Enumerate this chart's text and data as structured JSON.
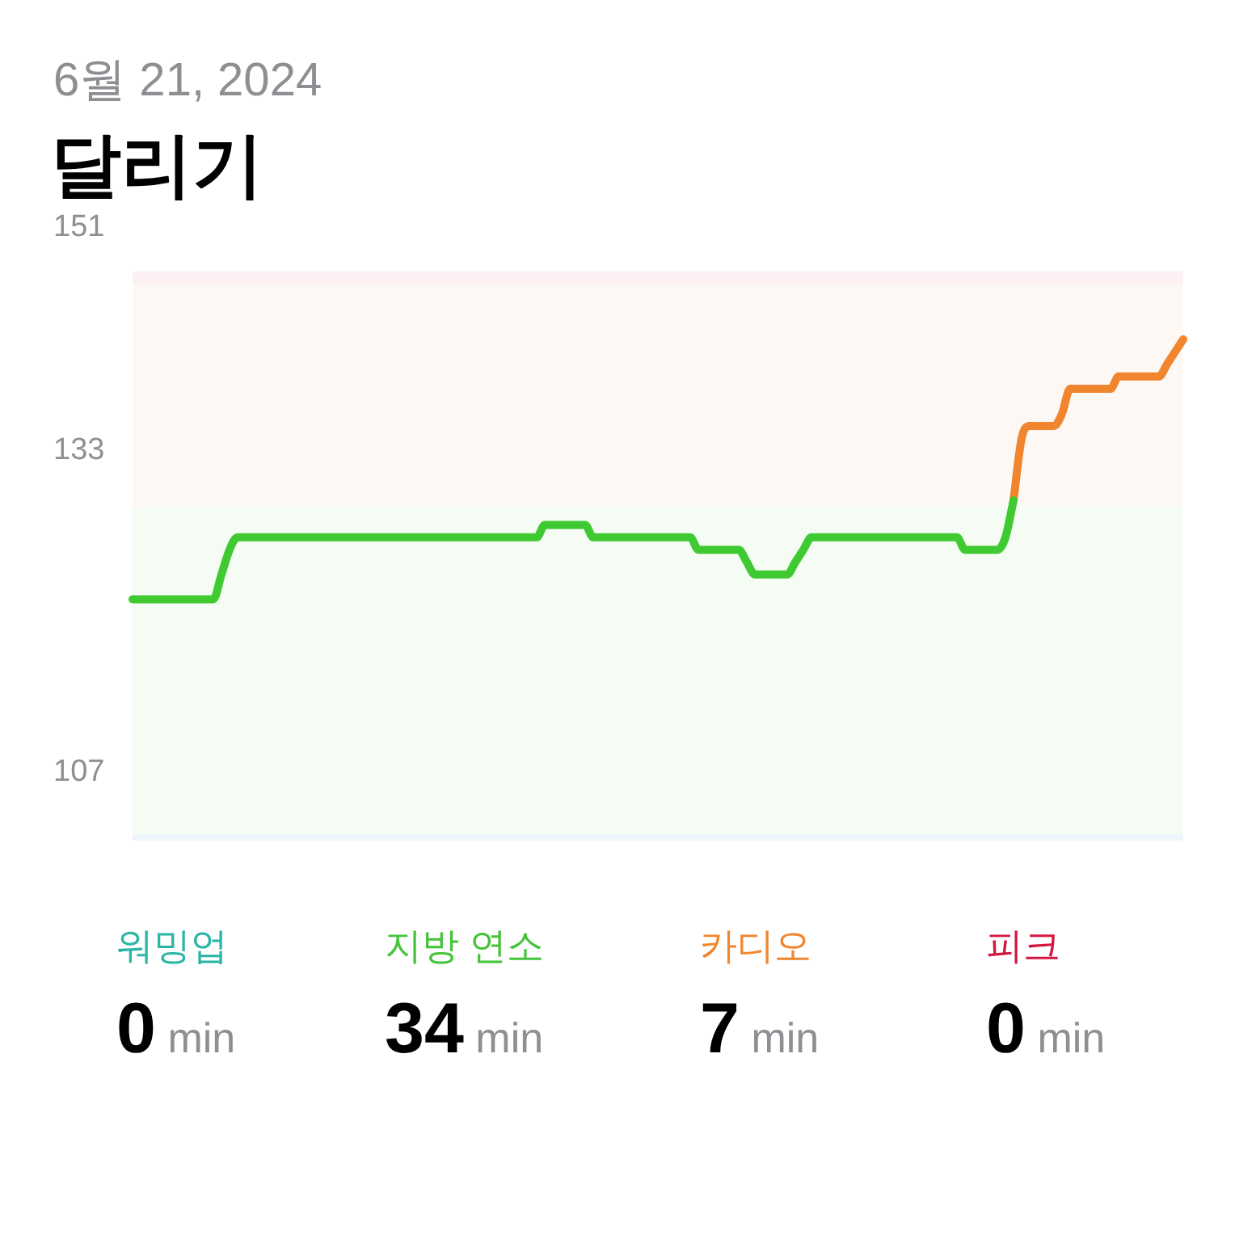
{
  "chart_data": {
    "type": "line",
    "title": "달리기",
    "subtitle": "6월 21, 2024",
    "categories": [
      null,
      null,
      null,
      null,
      null,
      null,
      null,
      null,
      null,
      null,
      null,
      null,
      null,
      null,
      null,
      null,
      null,
      null,
      null,
      null,
      null,
      null,
      null,
      null,
      null,
      null,
      null,
      null,
      null,
      null,
      null,
      null,
      null,
      null,
      null,
      null,
      null,
      null,
      null,
      null,
      null,
      null,
      null,
      null,
      null,
      null,
      null,
      null,
      null,
      null,
      null,
      null,
      null,
      null,
      null,
      null,
      null,
      null,
      null,
      null,
      null,
      null,
      null,
      null,
      null,
      null,
      null,
      null,
      null,
      null,
      null,
      null,
      null,
      null,
      null,
      null,
      null,
      null,
      null,
      null,
      null,
      null,
      null,
      null,
      null,
      null,
      null,
      null,
      null,
      null,
      null,
      null,
      null,
      null,
      null,
      null,
      null,
      null,
      null,
      null,
      null,
      null,
      null,
      null,
      null,
      null,
      null,
      null,
      null,
      null,
      null,
      null,
      null,
      null,
      null,
      null,
      null,
      null,
      null,
      null,
      null,
      null,
      null,
      null,
      null,
      null,
      null,
      null,
      null,
      null,
      null
    ],
    "series": [
      {
        "color": "#3fca32",
        "values": [
          121,
          121,
          121,
          121,
          121,
          121,
          121,
          121,
          121,
          121,
          121,
          123,
          125,
          126,
          126,
          126,
          126,
          126,
          126,
          126,
          126,
          126,
          126,
          126,
          126,
          126,
          126,
          126,
          126,
          126,
          126,
          126,
          126,
          126,
          126,
          126,
          126,
          126,
          126,
          126,
          126,
          126,
          126,
          126,
          126,
          126,
          126,
          126,
          126,
          126,
          126,
          127,
          127,
          127,
          127,
          127,
          127,
          126,
          126,
          126,
          126,
          126,
          126,
          126,
          126,
          126,
          126,
          126,
          126,
          126,
          125,
          125,
          125,
          125,
          125,
          125,
          124,
          123,
          123,
          123,
          123,
          123,
          124,
          125,
          126,
          126,
          126,
          126,
          126,
          126,
          126,
          126,
          126,
          126,
          126,
          126,
          126,
          126,
          126,
          126,
          126,
          126,
          126,
          125,
          125,
          125,
          125,
          125,
          126,
          129,
          null,
          null,
          null,
          null,
          null,
          null,
          null,
          null,
          null,
          null,
          null,
          null,
          null,
          null,
          null,
          null,
          null,
          null,
          null,
          null,
          null
        ]
      },
      {
        "color": "#f0852d",
        "values": [
          null,
          null,
          null,
          null,
          null,
          null,
          null,
          null,
          null,
          null,
          null,
          null,
          null,
          null,
          null,
          null,
          null,
          null,
          null,
          null,
          null,
          null,
          null,
          null,
          null,
          null,
          null,
          null,
          null,
          null,
          null,
          null,
          null,
          null,
          null,
          null,
          null,
          null,
          null,
          null,
          null,
          null,
          null,
          null,
          null,
          null,
          null,
          null,
          null,
          null,
          null,
          null,
          null,
          null,
          null,
          null,
          null,
          null,
          null,
          null,
          null,
          null,
          null,
          null,
          null,
          null,
          null,
          null,
          null,
          null,
          null,
          null,
          null,
          null,
          null,
          null,
          null,
          null,
          null,
          null,
          null,
          null,
          null,
          null,
          null,
          null,
          null,
          null,
          null,
          null,
          null,
          null,
          null,
          null,
          null,
          null,
          null,
          null,
          null,
          null,
          null,
          null,
          null,
          null,
          null,
          null,
          null,
          null,
          null,
          129,
          134,
          135,
          135,
          135,
          135,
          136,
          138,
          138,
          138,
          138,
          138,
          138,
          139,
          139,
          139,
          139,
          139,
          139,
          140,
          141,
          142
        ]
      }
    ],
    "ylim": [
      101.5,
      151
    ],
    "yticks": [
      107,
      133,
      151
    ],
    "tick_labels": "y",
    "bands": [
      {
        "axis": "y",
        "from": 101.5,
        "to": 102,
        "color": "#edf6fc"
      },
      {
        "axis": "y",
        "from": 102,
        "to": 128.5,
        "color": "#f4fcf3"
      },
      {
        "axis": "y",
        "from": 128.5,
        "to": 146.5,
        "color": "#fef8f4"
      },
      {
        "axis": "y",
        "from": 146.5,
        "to": 147.5,
        "color": "#fdf0f3"
      }
    ],
    "annotations": [
      "워밍업",
      "0 min",
      "지방 연소",
      "34 min",
      "카디오",
      "7 min",
      "피크",
      "0 min"
    ]
  }
}
